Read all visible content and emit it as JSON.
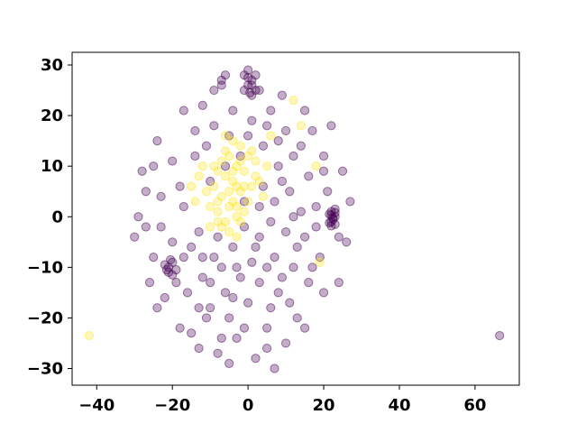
{
  "chart_data": {
    "type": "scatter",
    "title": "",
    "xlabel": "",
    "ylabel": "",
    "xlim": [
      -46.5,
      71.7
    ],
    "ylim": [
      -33.3,
      32.5
    ],
    "grid": false,
    "legend": "none",
    "x_ticks": [
      -40,
      -20,
      0,
      20,
      40,
      60
    ],
    "x_tick_labels": [
      "−40",
      "−20",
      "0",
      "20",
      "40",
      "60"
    ],
    "y_ticks": [
      -30,
      -20,
      -10,
      0,
      10,
      20,
      30
    ],
    "y_tick_labels": [
      "−30",
      "−20",
      "−10",
      "0",
      "10",
      "20",
      "30"
    ],
    "colors": {
      "class_0": "#440154",
      "class_1": "#fde725",
      "axes": "#000000",
      "background": "#ffffff"
    },
    "series": [
      {
        "color": "#440154",
        "points": [
          [
            66.5,
            -23.5
          ],
          [
            0,
            29
          ],
          [
            1,
            27
          ],
          [
            0,
            26
          ],
          [
            2,
            25
          ],
          [
            1,
            24
          ],
          [
            -1,
            25
          ],
          [
            2,
            28
          ],
          [
            -1,
            28
          ],
          [
            0,
            27.5
          ],
          [
            1,
            26
          ],
          [
            0.5,
            24.5
          ],
          [
            3,
            25
          ],
          [
            -6,
            28
          ],
          [
            -7,
            27
          ],
          [
            -7,
            26
          ],
          [
            22,
            1
          ],
          [
            22,
            -1
          ],
          [
            23,
            0
          ],
          [
            22.5,
            -0.5
          ],
          [
            21.5,
            0.5
          ],
          [
            23,
            -1.5
          ],
          [
            22,
            0.3
          ],
          [
            21.5,
            -1.2
          ],
          [
            23,
            0.8
          ],
          [
            22.4,
            -0.2
          ],
          [
            22,
            -1.8
          ],
          [
            23,
            1.5
          ],
          [
            -21,
            -10
          ],
          [
            -20,
            -9
          ],
          [
            -22,
            -9.5
          ],
          [
            -21,
            -11
          ],
          [
            -19,
            -10.5
          ],
          [
            -20.5,
            -8.5
          ],
          [
            -21.5,
            -10.5
          ],
          [
            -20,
            -11.5
          ],
          [
            9,
            24
          ],
          [
            5,
            18
          ],
          [
            -12,
            22
          ],
          [
            -17,
            21
          ],
          [
            -24,
            15
          ],
          [
            -25,
            10
          ],
          [
            -28,
            9
          ],
          [
            -27,
            5
          ],
          [
            -30,
            -4
          ],
          [
            -26,
            -13
          ],
          [
            -24,
            -18
          ],
          [
            -18,
            -22
          ],
          [
            -15,
            -23
          ],
          [
            -13,
            -26
          ],
          [
            -8,
            -27
          ],
          [
            -5,
            -29
          ],
          [
            2,
            -28
          ],
          [
            7,
            -30
          ],
          [
            10,
            -25
          ],
          [
            15,
            -22
          ],
          [
            20,
            -15
          ],
          [
            24,
            -13
          ],
          [
            26,
            -5
          ],
          [
            27,
            3
          ],
          [
            25,
            9
          ],
          [
            20,
            12
          ],
          [
            17,
            17
          ],
          [
            22,
            18
          ],
          [
            -29,
            0
          ],
          [
            -23,
            -2
          ],
          [
            -17,
            2
          ],
          [
            -15,
            -6
          ],
          [
            -12,
            -12
          ],
          [
            -10,
            -18
          ],
          [
            -5,
            -20
          ],
          [
            0,
            -17
          ],
          [
            5,
            -22
          ],
          [
            8,
            -15
          ],
          [
            12,
            -10
          ],
          [
            15,
            -4
          ],
          [
            18,
            2
          ],
          [
            16,
            8
          ],
          [
            12,
            12
          ],
          [
            8,
            15
          ],
          [
            4,
            14
          ],
          [
            -2,
            12
          ],
          [
            -6,
            10
          ],
          [
            -10,
            7
          ],
          [
            -14,
            12
          ],
          [
            -18,
            6
          ],
          [
            -20,
            -5
          ],
          [
            -25,
            -8
          ],
          [
            -13,
            -3
          ],
          [
            -9,
            -8
          ],
          [
            -4,
            -6
          ],
          [
            -1,
            -2
          ],
          [
            3,
            -4
          ],
          [
            7,
            -8
          ],
          [
            10,
            -3
          ],
          [
            14,
            1
          ],
          [
            11,
            5
          ],
          [
            7,
            3
          ],
          [
            4,
            6
          ],
          [
            1,
            -9
          ],
          [
            -2,
            -12
          ],
          [
            -6,
            -15
          ],
          [
            -3,
            -24
          ],
          [
            3,
            -13
          ],
          [
            6,
            -18
          ],
          [
            11,
            -17
          ],
          [
            16,
            -13
          ],
          [
            19,
            -8
          ],
          [
            13,
            -20
          ],
          [
            -16,
            -15
          ],
          [
            -11,
            -20
          ],
          [
            -7,
            -10
          ],
          [
            -17,
            -8
          ],
          [
            -23,
            4
          ],
          [
            -14,
            17
          ],
          [
            -9,
            18
          ],
          [
            -4,
            21
          ],
          [
            1,
            19
          ],
          [
            6,
            21
          ],
          [
            10,
            17
          ],
          [
            14,
            14
          ],
          [
            18,
            -2
          ],
          [
            21,
            5
          ],
          [
            9,
            -12
          ],
          [
            5,
            -26
          ],
          [
            -1,
            -22
          ],
          [
            -7,
            -24
          ],
          [
            -13,
            -18
          ],
          [
            -19,
            -13
          ],
          [
            -12,
            -8
          ],
          [
            -8,
            -4
          ],
          [
            -3,
            -10
          ],
          [
            2,
            -6
          ],
          [
            6,
            -1
          ],
          [
            9,
            7
          ],
          [
            13,
            -6
          ],
          [
            17,
            -10
          ],
          [
            3,
            2
          ],
          [
            -1,
            3
          ],
          [
            -5,
            16
          ],
          [
            -11,
            14
          ],
          [
            -20,
            11
          ],
          [
            -22,
            -16
          ],
          [
            -27,
            -2
          ],
          [
            24,
            -4
          ],
          [
            20,
            9
          ],
          [
            15,
            21
          ],
          [
            -9,
            25
          ],
          [
            0,
            16
          ],
          [
            8,
            10
          ],
          [
            12,
            0
          ],
          [
            5,
            -10
          ],
          [
            -4,
            -16
          ],
          [
            -10,
            -13
          ]
        ]
      },
      {
        "color": "#fde725",
        "points": [
          [
            -42,
            -23.5
          ],
          [
            -4,
            7
          ],
          [
            -2,
            5
          ],
          [
            -5,
            2
          ],
          [
            -7,
            4
          ],
          [
            -3,
            0
          ],
          [
            -6,
            -1
          ],
          [
            -8,
            1
          ],
          [
            -1,
            9
          ],
          [
            1,
            6
          ],
          [
            -3,
            10
          ],
          [
            -9,
            6
          ],
          [
            -5,
            12
          ],
          [
            -2,
            14
          ],
          [
            0,
            3
          ],
          [
            -7,
            -2
          ],
          [
            -4,
            3
          ],
          [
            -6,
            8
          ],
          [
            -8,
            9
          ],
          [
            -3,
            6
          ],
          [
            -1,
            1
          ],
          [
            -10,
            2
          ],
          [
            -5,
            -3
          ],
          [
            2,
            8
          ],
          [
            -2,
            11
          ],
          [
            -11,
            5
          ],
          [
            -6,
            13
          ],
          [
            -4,
            15
          ],
          [
            1,
            13
          ],
          [
            -8,
            -1
          ],
          [
            -3,
            2
          ],
          [
            -7,
            11
          ],
          [
            -5,
            5
          ],
          [
            -1,
            6
          ],
          [
            0,
            12
          ],
          [
            -9,
            10
          ],
          [
            2,
            11
          ],
          [
            -12,
            10
          ],
          [
            -6,
            16
          ],
          [
            -3,
            -4
          ],
          [
            3,
            7
          ],
          [
            -13,
            8
          ],
          [
            -10,
            -2
          ],
          [
            -4,
            9
          ],
          [
            -2,
            -1
          ],
          [
            -8,
            3
          ],
          [
            4,
            4
          ],
          [
            5,
            10
          ],
          [
            -14,
            3
          ],
          [
            12,
            23
          ],
          [
            18,
            10
          ],
          [
            19,
            -9
          ],
          [
            14,
            18
          ],
          [
            6,
            16
          ],
          [
            -15,
            6
          ]
        ]
      }
    ]
  }
}
